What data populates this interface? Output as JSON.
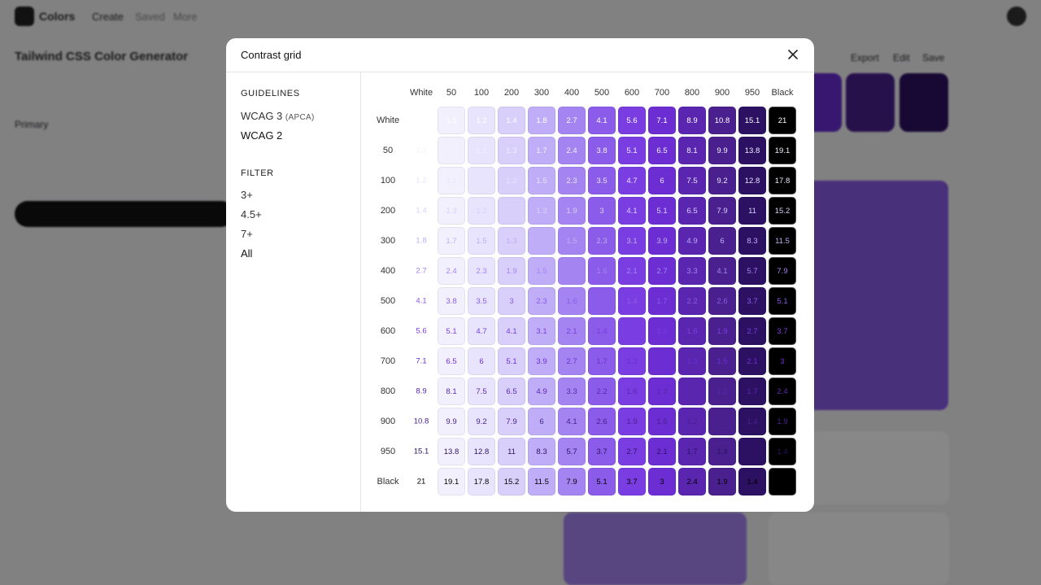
{
  "app": {
    "brand": "Colors",
    "nav": [
      "Create",
      "Saved",
      "More"
    ],
    "page_title": "Tailwind CSS Color Generator",
    "primary_label": "Primary",
    "actions": [
      "Export",
      "Edit",
      "Save"
    ]
  },
  "modal": {
    "title": "Contrast grid",
    "guidelines_heading": "GUIDELINES",
    "guidelines": [
      {
        "label": "WCAG 3",
        "note": "(APCA)"
      },
      {
        "label": "WCAG 2"
      }
    ],
    "filter_heading": "FILTER",
    "filters": [
      "3+",
      "4.5+",
      "7+",
      "All"
    ],
    "grid": {
      "shades": [
        "White",
        "50",
        "100",
        "200",
        "300",
        "400",
        "500",
        "600",
        "700",
        "800",
        "900",
        "950",
        "Black"
      ],
      "colors": [
        "#ffffff",
        "#f3f0fe",
        "#e9e4fd",
        "#d9cffb",
        "#bfadf7",
        "#a484f1",
        "#8b5be9",
        "#7a3de1",
        "#6c2ed3",
        "#5a26b0",
        "#4a208f",
        "#2c1163",
        "#000000"
      ],
      "rows": [
        [
          null,
          1.1,
          1.2,
          1.4,
          1.8,
          2.7,
          4.1,
          5.6,
          7.1,
          8.9,
          10.8,
          15.1,
          21
        ],
        [
          1.1,
          null,
          1.1,
          1.3,
          1.7,
          2.4,
          3.8,
          5.1,
          6.5,
          8.1,
          9.9,
          13.8,
          19.1
        ],
        [
          1.2,
          1.1,
          null,
          1.2,
          1.5,
          2.3,
          3.5,
          4.7,
          6,
          7.5,
          9.2,
          12.8,
          17.8
        ],
        [
          1.4,
          1.3,
          1.2,
          null,
          1.3,
          1.9,
          3,
          4.1,
          5.1,
          6.5,
          7.9,
          11,
          15.2
        ],
        [
          1.8,
          1.7,
          1.5,
          1.3,
          null,
          1.5,
          2.3,
          3.1,
          3.9,
          4.9,
          6,
          8.3,
          11.5
        ],
        [
          2.7,
          2.4,
          2.3,
          1.9,
          1.5,
          null,
          1.6,
          2.1,
          2.7,
          3.3,
          4.1,
          5.7,
          7.9
        ],
        [
          4.1,
          3.8,
          3.5,
          3,
          2.3,
          1.6,
          null,
          1.4,
          1.7,
          2.2,
          2.6,
          3.7,
          5.1
        ],
        [
          5.6,
          5.1,
          4.7,
          4.1,
          3.1,
          2.1,
          1.4,
          null,
          1.3,
          1.6,
          1.9,
          2.7,
          3.7
        ],
        [
          7.1,
          6.5,
          6,
          5.1,
          3.9,
          2.7,
          1.7,
          1.3,
          null,
          1.3,
          1.5,
          2.1,
          3
        ],
        [
          8.9,
          8.1,
          7.5,
          6.5,
          4.9,
          3.3,
          2.2,
          1.6,
          1.3,
          null,
          1.2,
          1.7,
          2.4
        ],
        [
          10.8,
          9.9,
          9.2,
          7.9,
          6,
          4.1,
          2.6,
          1.9,
          1.5,
          1.2,
          null,
          1.4,
          1.9
        ],
        [
          15.1,
          13.8,
          12.8,
          11,
          8.3,
          5.7,
          3.7,
          2.7,
          2.1,
          1.7,
          1.4,
          null,
          1.4
        ],
        [
          21,
          19.1,
          17.8,
          15.2,
          11.5,
          7.9,
          5.1,
          3.7,
          3,
          2.4,
          1.9,
          1.4,
          null
        ]
      ]
    }
  }
}
